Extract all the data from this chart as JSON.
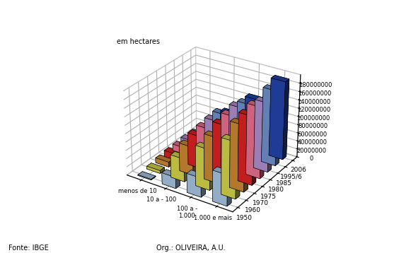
{
  "ylabel": "em hectares",
  "xlabel_bottom": "Fonte: IBGE",
  "xlabel_bottom2": "Org.: OLIVEIRA, A.U.",
  "categories": [
    "menos de 10",
    "10 a - 100",
    "100 a -\n1.000",
    "1.000 e mais"
  ],
  "years": [
    "1950",
    "1960",
    "1970",
    "1975",
    "1980",
    "1985",
    "1995/6",
    "2006"
  ],
  "data_by_cat": [
    [
      1700000,
      7000000,
      12000000,
      15000000,
      16000000,
      18000000,
      18000000,
      19000000
    ],
    [
      27000000,
      55000000,
      68000000,
      78000000,
      82000000,
      86000000,
      88000000,
      75000000
    ],
    [
      46000000,
      97000000,
      109000000,
      123000000,
      130000000,
      136000000,
      130000000,
      128000000
    ],
    [
      74000000,
      134000000,
      157000000,
      163000000,
      170000000,
      165000000,
      180000000,
      189000000
    ]
  ],
  "year_colors": [
    "#a8c4e0",
    "#d4d44a",
    "#cc8833",
    "#dd2222",
    "#e87090",
    "#b090cc",
    "#7090cc",
    "#2244aa"
  ],
  "ylim_max": 200000000,
  "yticks": [
    0,
    20000000,
    40000000,
    60000000,
    80000000,
    100000000,
    120000000,
    140000000,
    160000000,
    180000000
  ],
  "bar_width": 0.55,
  "bar_depth": 0.5,
  "elev": 28,
  "azim": -57,
  "background_color": "#ffffff"
}
